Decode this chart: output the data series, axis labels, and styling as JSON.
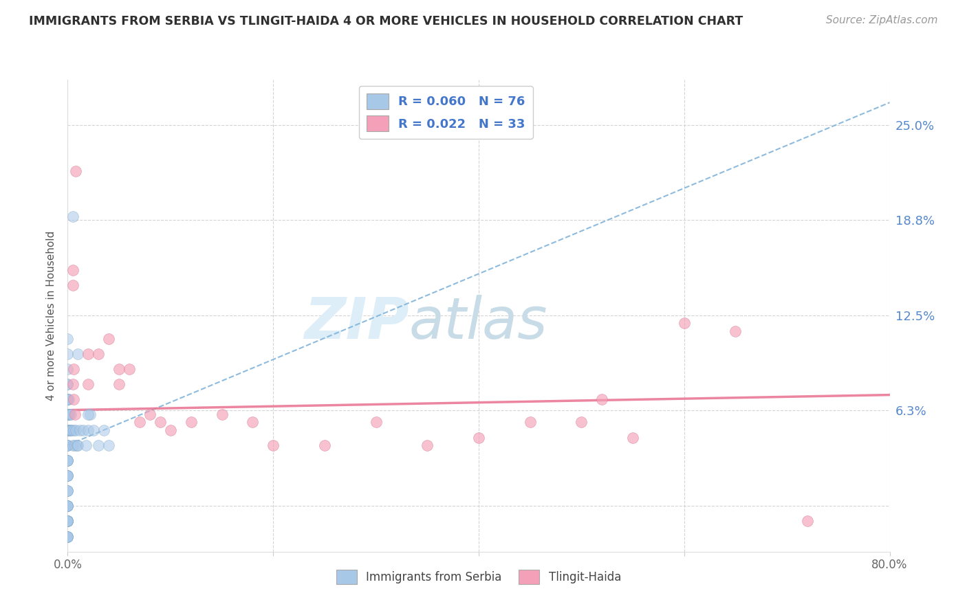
{
  "title": "IMMIGRANTS FROM SERBIA VS TLINGIT-HAIDA 4 OR MORE VEHICLES IN HOUSEHOLD CORRELATION CHART",
  "source": "Source: ZipAtlas.com",
  "ylabel": "4 or more Vehicles in Household",
  "xlim": [
    0.0,
    0.8
  ],
  "ylim": [
    -0.03,
    0.28
  ],
  "yticks": [
    0.0,
    0.063,
    0.125,
    0.188,
    0.25
  ],
  "ytick_labels": [
    "",
    "6.3%",
    "12.5%",
    "18.8%",
    "25.0%"
  ],
  "xticks": [
    0.0,
    0.2,
    0.4,
    0.6,
    0.8
  ],
  "xtick_labels_show": [
    "0.0%",
    "80.0%"
  ],
  "legend_label1": "Immigrants from Serbia",
  "legend_label2": "Tlingit-Haida",
  "R1": 0.06,
  "N1": 76,
  "R2": 0.022,
  "N2": 33,
  "color1": "#a8c8e8",
  "color2": "#f4a0b8",
  "trendline1_color": "#7ab0d8",
  "trendline2_color": "#e87090",
  "background_color": "#ffffff",
  "grid_color": "#d0d0d0",
  "title_color": "#303030",
  "watermark_color": "#ddeef8",
  "serbia_x": [
    0.0,
    0.0,
    0.0,
    0.0,
    0.0,
    0.0,
    0.0,
    0.0,
    0.0,
    0.0,
    0.0,
    0.0,
    0.0,
    0.0,
    0.0,
    0.0,
    0.0,
    0.0,
    0.0,
    0.0,
    0.0,
    0.0,
    0.0,
    0.0,
    0.0,
    0.0,
    0.0,
    0.0,
    0.0,
    0.0,
    0.0,
    0.0,
    0.0,
    0.0,
    0.0,
    0.0,
    0.0,
    0.0,
    0.0,
    0.0,
    0.0,
    0.0,
    0.0,
    0.0,
    0.0,
    0.0,
    0.0,
    0.0,
    0.0,
    0.0,
    0.001,
    0.001,
    0.001,
    0.002,
    0.002,
    0.003,
    0.003,
    0.004,
    0.005,
    0.006,
    0.007,
    0.008,
    0.009,
    0.01,
    0.012,
    0.015,
    0.018,
    0.02,
    0.022,
    0.025,
    0.03,
    0.035,
    0.04,
    0.02,
    0.01,
    0.005
  ],
  "serbia_y": [
    0.02,
    0.03,
    0.04,
    0.05,
    0.06,
    0.07,
    0.08,
    0.09,
    0.1,
    0.11,
    0.04,
    0.05,
    0.06,
    0.07,
    0.02,
    0.03,
    0.01,
    0.0,
    0.0,
    0.0,
    0.0,
    0.0,
    -0.01,
    -0.01,
    -0.01,
    -0.01,
    -0.01,
    -0.01,
    -0.01,
    -0.01,
    -0.01,
    -0.02,
    -0.02,
    -0.02,
    -0.02,
    -0.02,
    0.01,
    0.01,
    0.02,
    0.02,
    0.03,
    0.03,
    0.04,
    0.05,
    0.05,
    0.06,
    0.06,
    0.07,
    0.07,
    0.08,
    0.05,
    0.06,
    0.07,
    0.05,
    0.06,
    0.05,
    0.06,
    0.05,
    0.04,
    0.05,
    0.04,
    0.05,
    0.04,
    0.04,
    0.05,
    0.05,
    0.04,
    0.05,
    0.06,
    0.05,
    0.04,
    0.05,
    0.04,
    0.06,
    0.1,
    0.19
  ],
  "tlingit_x": [
    0.005,
    0.005,
    0.005,
    0.006,
    0.006,
    0.007,
    0.008,
    0.02,
    0.02,
    0.03,
    0.04,
    0.05,
    0.05,
    0.06,
    0.07,
    0.08,
    0.09,
    0.1,
    0.12,
    0.15,
    0.18,
    0.2,
    0.25,
    0.3,
    0.35,
    0.4,
    0.45,
    0.5,
    0.52,
    0.55,
    0.6,
    0.65,
    0.72
  ],
  "tlingit_y": [
    0.155,
    0.145,
    0.08,
    0.09,
    0.07,
    0.06,
    0.22,
    0.08,
    0.1,
    0.1,
    0.11,
    0.09,
    0.08,
    0.09,
    0.055,
    0.06,
    0.055,
    0.05,
    0.055,
    0.06,
    0.055,
    0.04,
    0.04,
    0.055,
    0.04,
    0.045,
    0.055,
    0.055,
    0.07,
    0.045,
    0.12,
    0.115,
    -0.01
  ],
  "blue_trend_x0": 0.0,
  "blue_trend_y0": 0.04,
  "blue_trend_x1": 0.8,
  "blue_trend_y1": 0.265,
  "pink_trend_x0": 0.0,
  "pink_trend_y0": 0.063,
  "pink_trend_x1": 0.8,
  "pink_trend_y1": 0.073
}
